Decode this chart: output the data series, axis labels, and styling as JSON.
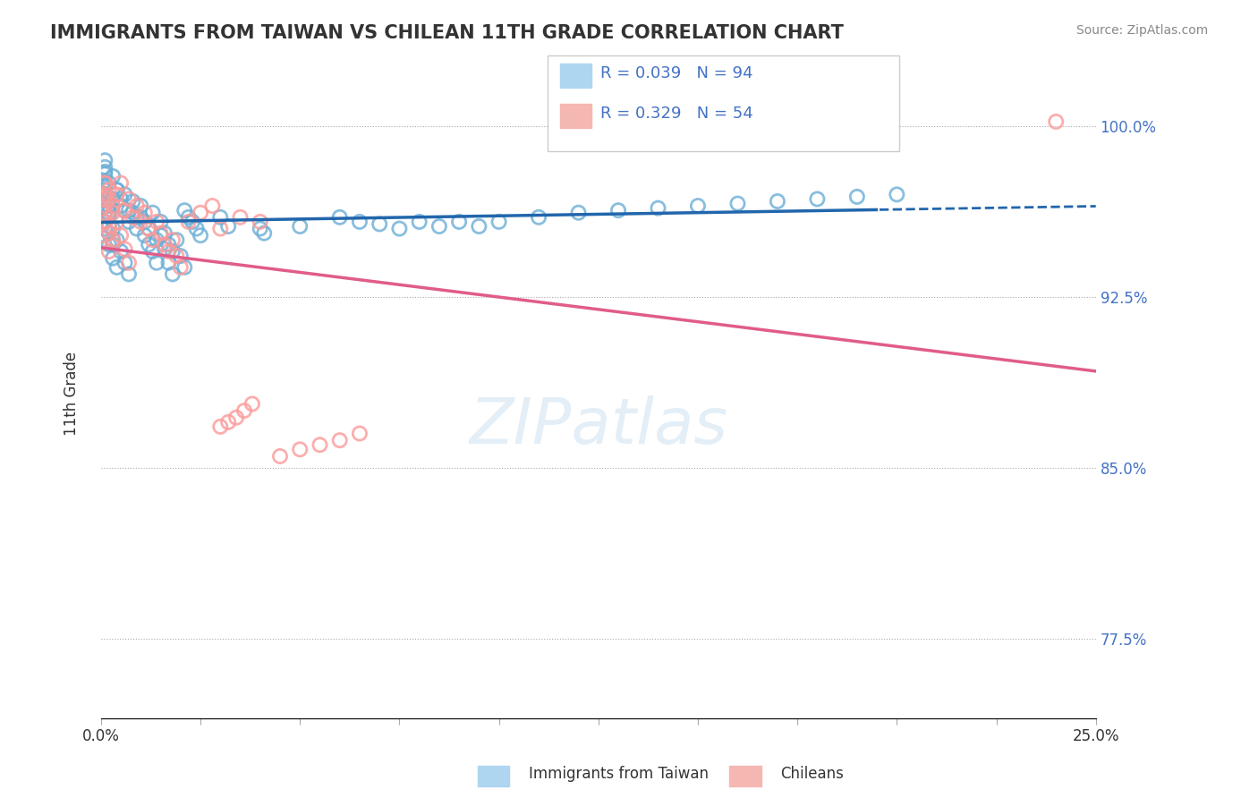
{
  "title": "IMMIGRANTS FROM TAIWAN VS CHILEAN 11TH GRADE CORRELATION CHART",
  "source": "Source: ZipAtlas.com",
  "xlabel_legend1": "Immigrants from Taiwan",
  "xlabel_legend2": "Chileans",
  "ylabel": "11th Grade",
  "xmin": 0.0,
  "xmax": 0.25,
  "ymin": 0.74,
  "ymax": 1.025,
  "yticks": [
    0.775,
    0.85,
    0.925,
    1.0
  ],
  "ytick_labels": [
    "77.5%",
    "85.0%",
    "92.5%",
    "100.0%"
  ],
  "xtick_labels": [
    "0.0%",
    "",
    "",
    "",
    "",
    "",
    "",
    "",
    "",
    "",
    "25.0%"
  ],
  "r_taiwan": 0.039,
  "n_taiwan": 94,
  "r_chilean": 0.329,
  "n_chilean": 54,
  "color_taiwan": "#6baed6",
  "color_chilean": "#fb9a99",
  "color_taiwan_line": "#2166ac",
  "color_chilean_line": "#e05c8a",
  "watermark": "ZIPatlas",
  "taiwan_x": [
    0.002,
    0.003,
    0.004,
    0.005,
    0.006,
    0.007,
    0.008,
    0.009,
    0.01,
    0.011,
    0.012,
    0.013,
    0.014,
    0.015,
    0.016,
    0.017,
    0.018,
    0.019,
    0.02,
    0.021,
    0.003,
    0.004,
    0.005,
    0.006,
    0.007,
    0.008,
    0.009,
    0.01,
    0.011,
    0.012,
    0.013,
    0.014,
    0.015,
    0.016,
    0.017,
    0.018,
    0.001,
    0.002,
    0.003,
    0.004,
    0.005,
    0.006,
    0.007,
    0.001,
    0.002,
    0.003,
    0.004,
    0.001,
    0.002,
    0.003,
    0.001,
    0.002,
    0.001,
    0.002,
    0.001,
    0.002,
    0.001,
    0.002,
    0.003,
    0.001,
    0.001,
    0.001,
    0.001,
    0.001,
    0.001,
    0.021,
    0.022,
    0.023,
    0.024,
    0.025,
    0.03,
    0.032,
    0.04,
    0.041,
    0.05,
    0.06,
    0.065,
    0.07,
    0.075,
    0.08,
    0.085,
    0.09,
    0.095,
    0.1,
    0.11,
    0.12,
    0.13,
    0.14,
    0.15,
    0.16,
    0.17,
    0.18,
    0.19,
    0.2
  ],
  "taiwan_y": [
    0.975,
    0.968,
    0.972,
    0.965,
    0.97,
    0.963,
    0.967,
    0.96,
    0.965,
    0.958,
    0.955,
    0.962,
    0.95,
    0.958,
    0.953,
    0.948,
    0.945,
    0.95,
    0.943,
    0.938,
    0.978,
    0.972,
    0.968,
    0.963,
    0.958,
    0.962,
    0.955,
    0.96,
    0.952,
    0.948,
    0.945,
    0.94,
    0.952,
    0.946,
    0.94,
    0.935,
    0.965,
    0.96,
    0.955,
    0.95,
    0.945,
    0.94,
    0.935,
    0.955,
    0.948,
    0.942,
    0.938,
    0.962,
    0.956,
    0.95,
    0.97,
    0.965,
    0.975,
    0.968,
    0.968,
    0.962,
    0.958,
    0.953,
    0.948,
    0.972,
    0.976,
    0.98,
    0.982,
    0.985,
    0.979,
    0.963,
    0.96,
    0.958,
    0.955,
    0.952,
    0.96,
    0.956,
    0.955,
    0.953,
    0.956,
    0.96,
    0.958,
    0.957,
    0.955,
    0.958,
    0.956,
    0.958,
    0.956,
    0.958,
    0.96,
    0.962,
    0.963,
    0.964,
    0.965,
    0.966,
    0.967,
    0.968,
    0.969,
    0.97
  ],
  "chilean_x": [
    0.001,
    0.002,
    0.003,
    0.004,
    0.005,
    0.006,
    0.007,
    0.008,
    0.009,
    0.01,
    0.011,
    0.012,
    0.013,
    0.014,
    0.015,
    0.016,
    0.017,
    0.018,
    0.019,
    0.02,
    0.001,
    0.002,
    0.003,
    0.004,
    0.005,
    0.006,
    0.007,
    0.001,
    0.002,
    0.003,
    0.001,
    0.002,
    0.001,
    0.002,
    0.001,
    0.001,
    0.001,
    0.022,
    0.025,
    0.028,
    0.03,
    0.035,
    0.04,
    0.045,
    0.05,
    0.055,
    0.06,
    0.065,
    0.03,
    0.032,
    0.034,
    0.036,
    0.038,
    0.24
  ],
  "chilean_y": [
    0.968,
    0.972,
    0.965,
    0.97,
    0.975,
    0.963,
    0.968,
    0.96,
    0.965,
    0.958,
    0.962,
    0.955,
    0.95,
    0.958,
    0.953,
    0.948,
    0.945,
    0.95,
    0.943,
    0.938,
    0.975,
    0.968,
    0.962,
    0.958,
    0.952,
    0.946,
    0.94,
    0.962,
    0.956,
    0.95,
    0.952,
    0.945,
    0.958,
    0.953,
    0.965,
    0.97,
    0.975,
    0.958,
    0.962,
    0.965,
    0.955,
    0.96,
    0.958,
    0.855,
    0.858,
    0.86,
    0.862,
    0.865,
    0.868,
    0.87,
    0.872,
    0.875,
    0.878,
    1.002
  ]
}
